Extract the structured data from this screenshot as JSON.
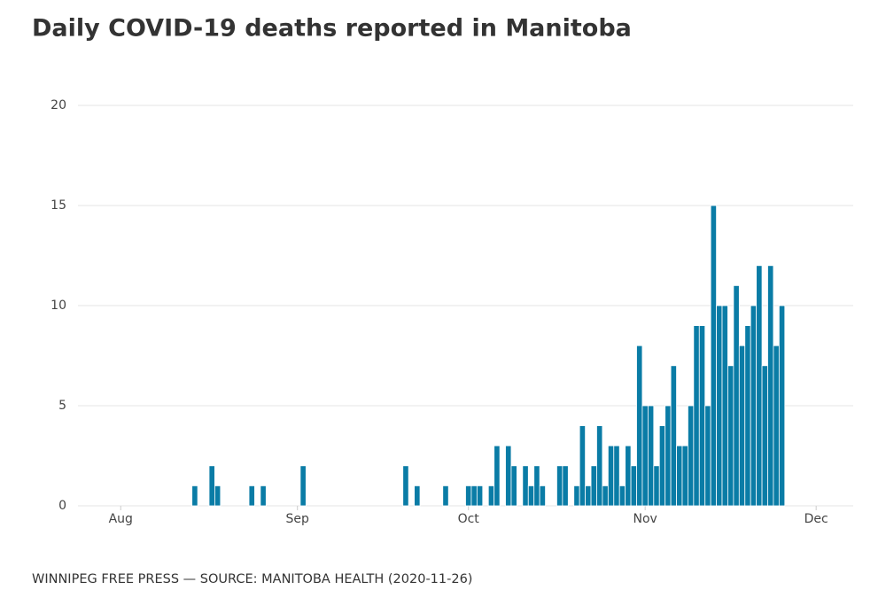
{
  "chart_data": {
    "type": "bar",
    "title": "Daily COVID-19 deaths reported in Manitoba",
    "source": "WINNIPEG FREE PRESS — SOURCE: MANITOBA HEALTH (2020-11-26)",
    "color": "#0a7ca6",
    "grid": true,
    "ylim": [
      0,
      20
    ],
    "yticks": [
      0,
      5,
      10,
      15,
      20
    ],
    "categories": [
      null,
      null,
      null,
      null,
      null,
      null,
      null,
      "Aug",
      null,
      null,
      null,
      null,
      null,
      null,
      null,
      null,
      null,
      null,
      null,
      null,
      null,
      null,
      null,
      null,
      null,
      null,
      null,
      null,
      null,
      null,
      null,
      null,
      null,
      null,
      null,
      null,
      null,
      null,
      "Sep",
      null,
      null,
      null,
      null,
      null,
      null,
      null,
      null,
      null,
      null,
      null,
      null,
      null,
      null,
      null,
      null,
      null,
      null,
      null,
      null,
      null,
      null,
      null,
      null,
      null,
      null,
      null,
      null,
      null,
      "Oct",
      null,
      null,
      null,
      null,
      null,
      null,
      null,
      null,
      null,
      null,
      null,
      null,
      null,
      null,
      null,
      null,
      null,
      null,
      null,
      null,
      null,
      null,
      null,
      null,
      null,
      null,
      null,
      null,
      null,
      null,
      "Nov",
      null,
      null,
      null,
      null,
      null,
      null,
      null,
      null,
      null,
      null,
      null,
      null,
      null,
      null,
      null,
      null,
      null,
      null,
      null,
      null,
      null,
      null,
      null,
      null,
      null,
      null,
      null,
      null,
      null,
      "Dec",
      null,
      null,
      null,
      null,
      null,
      null
    ],
    "values": [
      0,
      0,
      0,
      0,
      0,
      0,
      0,
      0,
      0,
      0,
      0,
      0,
      0,
      0,
      0,
      0,
      0,
      0,
      0,
      0,
      1,
      0,
      0,
      2,
      1,
      0,
      0,
      0,
      0,
      0,
      1,
      0,
      1,
      0,
      0,
      0,
      0,
      0,
      0,
      2,
      0,
      0,
      0,
      0,
      0,
      0,
      0,
      0,
      0,
      0,
      0,
      0,
      0,
      0,
      0,
      0,
      0,
      2,
      0,
      1,
      0,
      0,
      0,
      0,
      1,
      0,
      0,
      0,
      1,
      1,
      1,
      0,
      1,
      3,
      0,
      3,
      2,
      0,
      2,
      1,
      2,
      1,
      0,
      0,
      2,
      2,
      0,
      1,
      4,
      1,
      2,
      4,
      1,
      3,
      3,
      1,
      3,
      2,
      8,
      5,
      5,
      2,
      4,
      5,
      7,
      3,
      3,
      5,
      9,
      9,
      5,
      15,
      10,
      10,
      7,
      11,
      8,
      9,
      10,
      12,
      7,
      12,
      8,
      10,
      null,
      null,
      null,
      null,
      null,
      null,
      null,
      null,
      null,
      null,
      null,
      null
    ]
  }
}
